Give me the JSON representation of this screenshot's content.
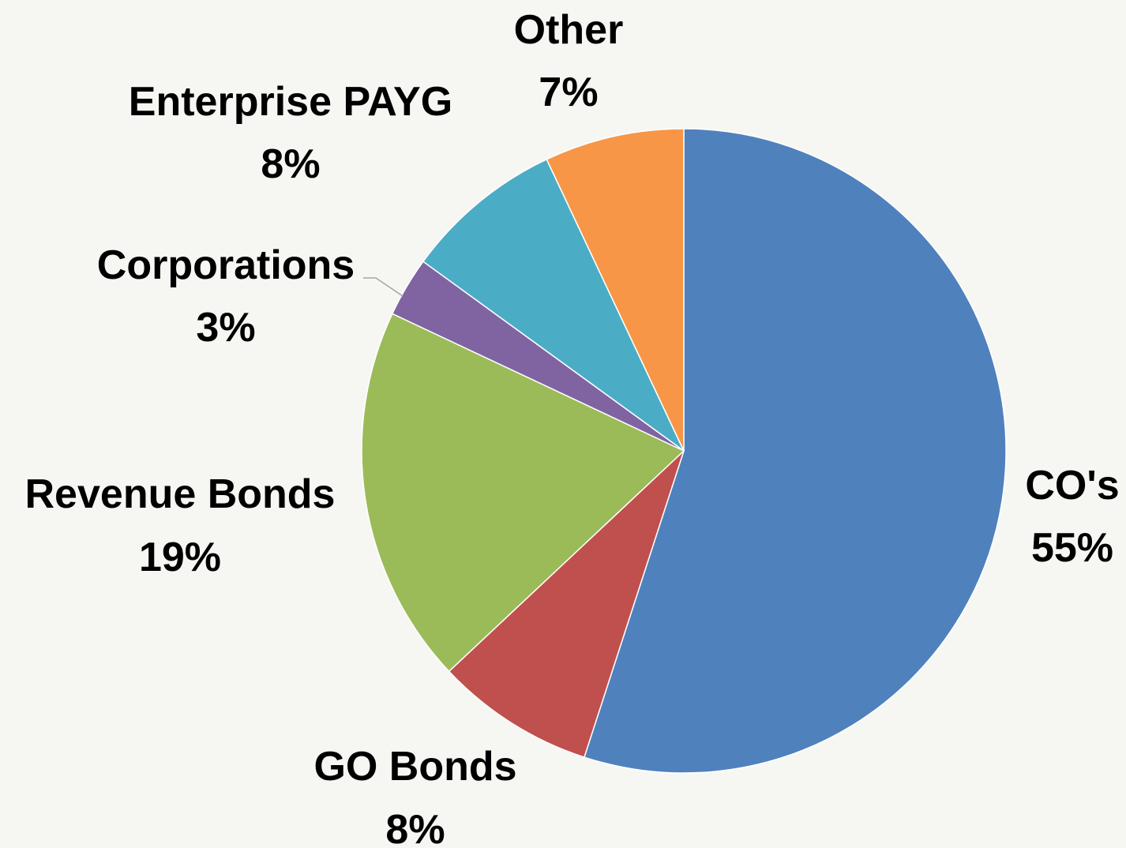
{
  "chart_data": {
    "type": "pie",
    "start_angle_deg": 0,
    "direction": "clockwise",
    "slices": [
      {
        "label": "CO's",
        "value": 55,
        "value_label": "55%",
        "color": "#4f81bd"
      },
      {
        "label": "GO Bonds",
        "value": 8,
        "value_label": "8%",
        "color": "#c0504d"
      },
      {
        "label": "Revenue Bonds",
        "value": 19,
        "value_label": "19%",
        "color": "#9bbb59"
      },
      {
        "label": "Corporations",
        "value": 3,
        "value_label": "3%",
        "color": "#8064a2"
      },
      {
        "label": "Enterprise PAYG",
        "value": 8,
        "value_label": "8%",
        "color": "#4bacc6"
      },
      {
        "label": "Other",
        "value": 7,
        "value_label": "7%",
        "color": "#f79646"
      }
    ]
  }
}
